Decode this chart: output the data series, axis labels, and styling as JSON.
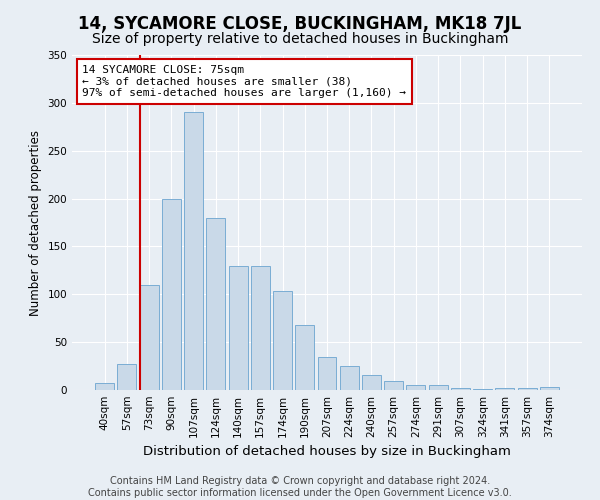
{
  "title": "14, SYCAMORE CLOSE, BUCKINGHAM, MK18 7JL",
  "subtitle": "Size of property relative to detached houses in Buckingham",
  "xlabel": "Distribution of detached houses by size in Buckingham",
  "ylabel": "Number of detached properties",
  "categories": [
    "40sqm",
    "57sqm",
    "73sqm",
    "90sqm",
    "107sqm",
    "124sqm",
    "140sqm",
    "157sqm",
    "174sqm",
    "190sqm",
    "207sqm",
    "224sqm",
    "240sqm",
    "257sqm",
    "274sqm",
    "291sqm",
    "307sqm",
    "324sqm",
    "341sqm",
    "357sqm",
    "374sqm"
  ],
  "values": [
    7,
    27,
    110,
    200,
    290,
    180,
    130,
    130,
    103,
    68,
    35,
    25,
    16,
    9,
    5,
    5,
    2,
    1,
    2,
    2,
    3
  ],
  "bar_color": "#c9d9e8",
  "bar_edge_color": "#7aadd4",
  "highlight_bar_index": 2,
  "highlight_line_color": "#cc0000",
  "annotation_text": "14 SYCAMORE CLOSE: 75sqm\n← 3% of detached houses are smaller (38)\n97% of semi-detached houses are larger (1,160) →",
  "annotation_box_color": "#ffffff",
  "annotation_box_edge_color": "#cc0000",
  "ylim": [
    0,
    350
  ],
  "yticks": [
    0,
    50,
    100,
    150,
    200,
    250,
    300,
    350
  ],
  "background_color": "#e8eef4",
  "plot_background_color": "#e8eef4",
  "footer_line1": "Contains HM Land Registry data © Crown copyright and database right 2024.",
  "footer_line2": "Contains public sector information licensed under the Open Government Licence v3.0.",
  "title_fontsize": 12,
  "subtitle_fontsize": 10,
  "xlabel_fontsize": 9.5,
  "ylabel_fontsize": 8.5,
  "tick_fontsize": 7.5,
  "footer_fontsize": 7,
  "annotation_fontsize": 8
}
